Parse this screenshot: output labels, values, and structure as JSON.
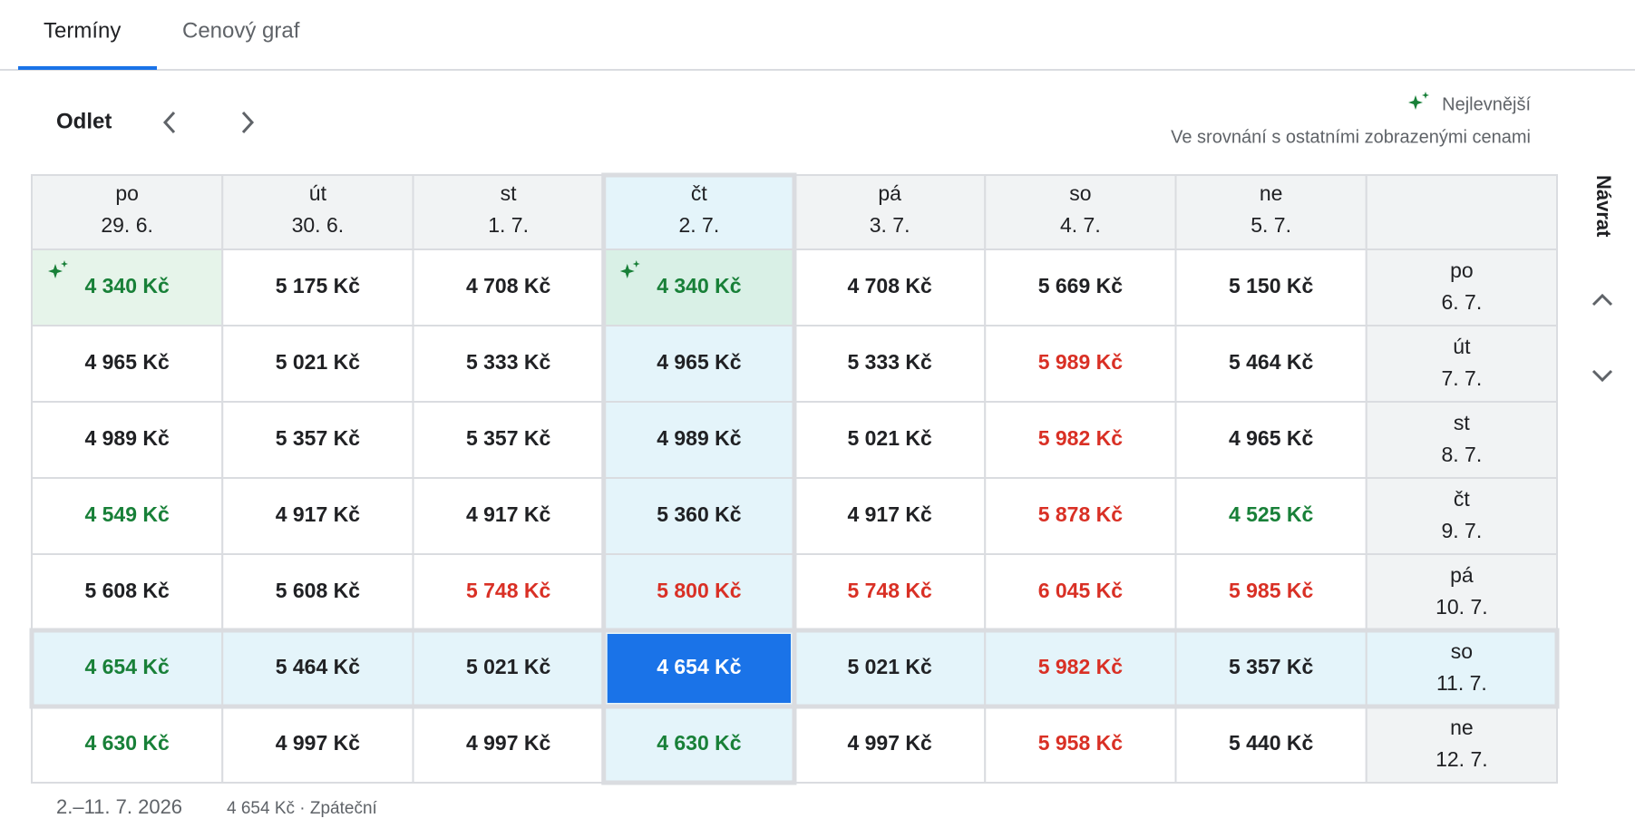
{
  "tabs": [
    {
      "label": "Termíny",
      "active": true
    },
    {
      "label": "Cenový graf",
      "active": false
    }
  ],
  "departure_label": "Odlet",
  "legend": {
    "label": "Nejlevnější",
    "note": "Ve srovnání s ostatními zobrazenými cenami"
  },
  "return_label": "Návrat",
  "columns": [
    {
      "day": "po",
      "date": "29. 6."
    },
    {
      "day": "út",
      "date": "30. 6."
    },
    {
      "day": "st",
      "date": "1. 7."
    },
    {
      "day": "čt",
      "date": "2. 7."
    },
    {
      "day": "pá",
      "date": "3. 7."
    },
    {
      "day": "so",
      "date": "4. 7."
    },
    {
      "day": "ne",
      "date": "5. 7."
    }
  ],
  "rows": [
    {
      "day": "po",
      "date": "6. 7.",
      "cells": [
        {
          "price": "4 340 Kč",
          "tone": "low",
          "best": true
        },
        {
          "price": "5 175 Kč",
          "tone": "normal"
        },
        {
          "price": "4 708 Kč",
          "tone": "normal"
        },
        {
          "price": "4 340 Kč",
          "tone": "low",
          "best": true
        },
        {
          "price": "4 708 Kč",
          "tone": "normal"
        },
        {
          "price": "5 669 Kč",
          "tone": "normal"
        },
        {
          "price": "5 150 Kč",
          "tone": "normal"
        }
      ]
    },
    {
      "day": "út",
      "date": "7. 7.",
      "cells": [
        {
          "price": "4 965 Kč",
          "tone": "normal"
        },
        {
          "price": "5 021 Kč",
          "tone": "normal"
        },
        {
          "price": "5 333 Kč",
          "tone": "normal"
        },
        {
          "price": "4 965 Kč",
          "tone": "normal"
        },
        {
          "price": "5 333 Kč",
          "tone": "normal"
        },
        {
          "price": "5 989 Kč",
          "tone": "high"
        },
        {
          "price": "5 464 Kč",
          "tone": "normal"
        }
      ]
    },
    {
      "day": "st",
      "date": "8. 7.",
      "cells": [
        {
          "price": "4 989 Kč",
          "tone": "normal"
        },
        {
          "price": "5 357 Kč",
          "tone": "normal"
        },
        {
          "price": "5 357 Kč",
          "tone": "normal"
        },
        {
          "price": "4 989 Kč",
          "tone": "normal"
        },
        {
          "price": "5 021 Kč",
          "tone": "normal"
        },
        {
          "price": "5 982 Kč",
          "tone": "high"
        },
        {
          "price": "4 965 Kč",
          "tone": "normal"
        }
      ]
    },
    {
      "day": "čt",
      "date": "9. 7.",
      "cells": [
        {
          "price": "4 549 Kč",
          "tone": "low"
        },
        {
          "price": "4 917 Kč",
          "tone": "normal"
        },
        {
          "price": "4 917 Kč",
          "tone": "normal"
        },
        {
          "price": "5 360 Kč",
          "tone": "normal"
        },
        {
          "price": "4 917 Kč",
          "tone": "normal"
        },
        {
          "price": "5 878 Kč",
          "tone": "high"
        },
        {
          "price": "4 525 Kč",
          "tone": "low"
        }
      ]
    },
    {
      "day": "pá",
      "date": "10. 7.",
      "cells": [
        {
          "price": "5 608 Kč",
          "tone": "normal"
        },
        {
          "price": "5 608 Kč",
          "tone": "normal"
        },
        {
          "price": "5 748 Kč",
          "tone": "high"
        },
        {
          "price": "5 800 Kč",
          "tone": "high"
        },
        {
          "price": "5 748 Kč",
          "tone": "high"
        },
        {
          "price": "6 045 Kč",
          "tone": "high"
        },
        {
          "price": "5 985 Kč",
          "tone": "high"
        }
      ]
    },
    {
      "day": "so",
      "date": "11. 7.",
      "cells": [
        {
          "price": "4 654 Kč",
          "tone": "low"
        },
        {
          "price": "5 464 Kč",
          "tone": "normal"
        },
        {
          "price": "5 021 Kč",
          "tone": "normal"
        },
        {
          "price": "4 654 Kč",
          "tone": "low",
          "selected": true
        },
        {
          "price": "5 021 Kč",
          "tone": "normal"
        },
        {
          "price": "5 982 Kč",
          "tone": "high"
        },
        {
          "price": "5 357 Kč",
          "tone": "normal"
        }
      ]
    },
    {
      "day": "ne",
      "date": "12. 7.",
      "cells": [
        {
          "price": "4 630 Kč",
          "tone": "low"
        },
        {
          "price": "4 997 Kč",
          "tone": "normal"
        },
        {
          "price": "4 997 Kč",
          "tone": "normal"
        },
        {
          "price": "4 630 Kč",
          "tone": "low"
        },
        {
          "price": "4 997 Kč",
          "tone": "normal"
        },
        {
          "price": "5 958 Kč",
          "tone": "high"
        },
        {
          "price": "5 440 Kč",
          "tone": "normal"
        }
      ]
    }
  ],
  "footer": {
    "dates": "2.–11. 7. 2026",
    "summary": "4 654 Kč · Zpáteční"
  }
}
